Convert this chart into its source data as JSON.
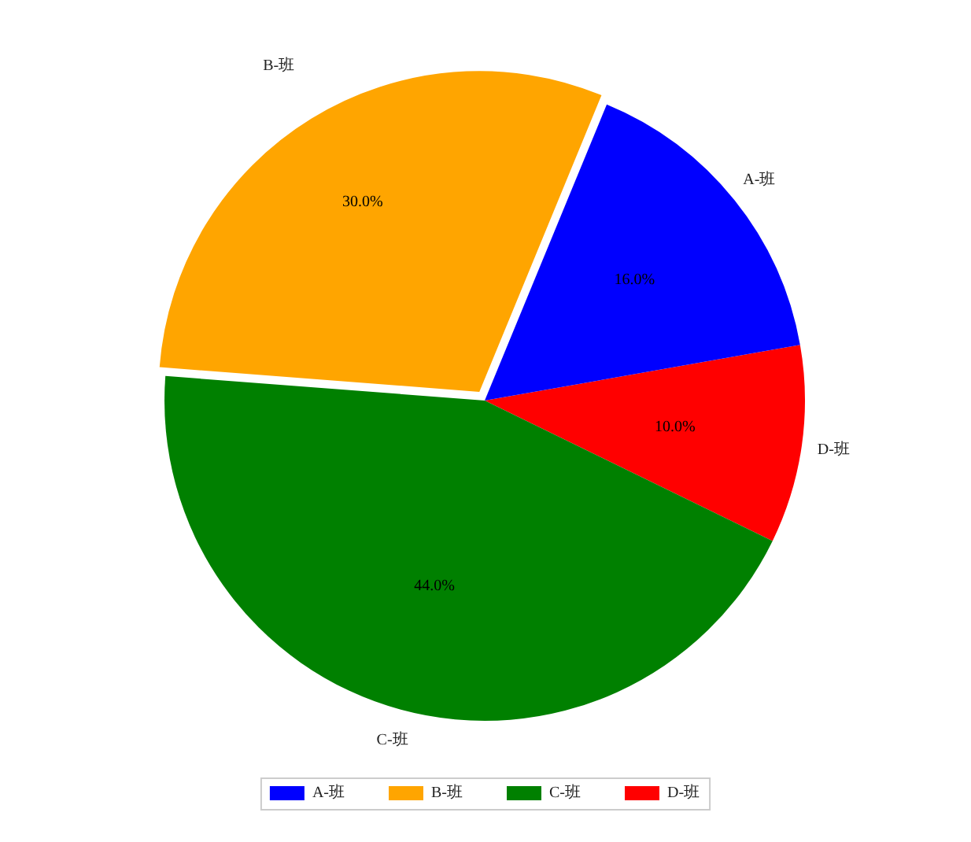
{
  "chart_data": {
    "type": "pie",
    "categories": [
      "A-班",
      "B-班",
      "C-班",
      "D-班"
    ],
    "values": [
      16,
      30,
      44,
      10
    ],
    "colors": [
      "#0000ff",
      "#ffa500",
      "#008000",
      "#ff0000"
    ],
    "value_labels": [
      "16.0%",
      "30.0%",
      "44.0%",
      "10.0%"
    ],
    "legend": "bottom"
  }
}
